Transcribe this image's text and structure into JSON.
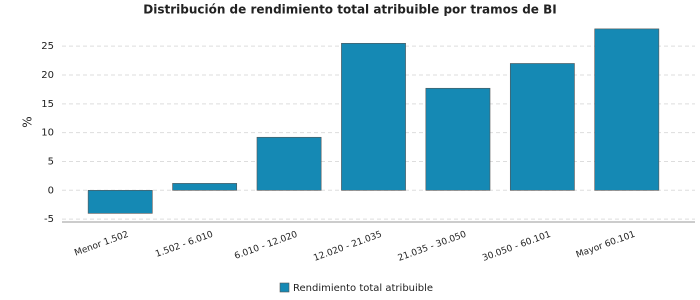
{
  "chart_data": {
    "type": "bar",
    "title": "Distribución de rendimiento total atribuible por tramos de BI",
    "y_label": "%",
    "categories": [
      "Menor 1.502",
      "1.502 - 6.010",
      "6.010 - 12.020",
      "12.020 - 21.035",
      "21.035 - 30.050",
      "30.050 - 60.101",
      "Mayor 60.101"
    ],
    "series": [
      {
        "name": "Rendimiento total atribuible",
        "color": "#1589b4",
        "values": [
          -4.0,
          1.2,
          9.2,
          25.5,
          17.7,
          22.0,
          28.0
        ]
      }
    ],
    "ylim": [
      -5.5,
      28.5
    ],
    "yticks": [
      -5,
      0,
      5,
      10,
      15,
      20,
      25
    ],
    "grid": true,
    "legend": "bottom"
  }
}
